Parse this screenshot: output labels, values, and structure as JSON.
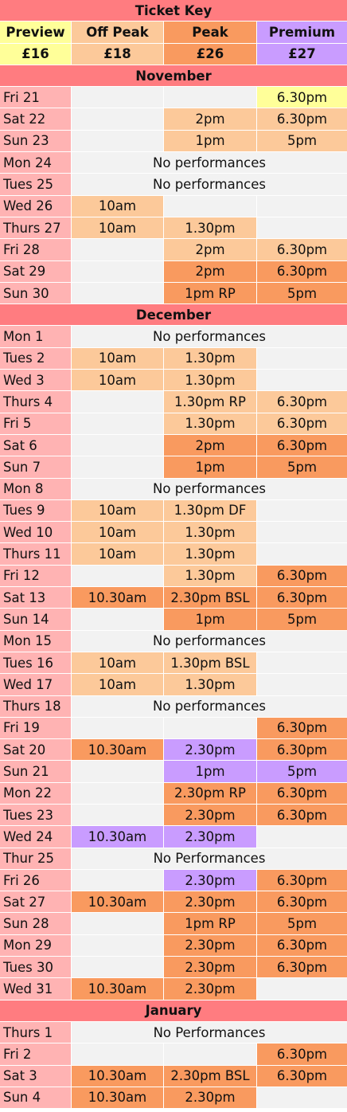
{
  "colors": {
    "head": "#ff7c80",
    "day": "#ffb3b3",
    "empty": "#f2f2f2",
    "preview": "#ffff99",
    "offpeak": "#fcc99a",
    "peak": "#f99a5f",
    "premium": "#c99cff"
  },
  "key": {
    "title": "Ticket Key",
    "tiers": [
      {
        "label": "Preview",
        "price": "£16",
        "color": "preview"
      },
      {
        "label": "Off Peak",
        "price": "£18",
        "color": "offpeak"
      },
      {
        "label": "Peak",
        "price": "£26",
        "color": "peak"
      },
      {
        "label": "Premium",
        "price": "£27",
        "color": "premium"
      }
    ]
  },
  "months": [
    {
      "name": "November",
      "rows": [
        {
          "day": "Fri 21",
          "cells": [
            {
              "t": "",
              "c": "empty"
            },
            {
              "t": "",
              "c": "empty"
            },
            {
              "t": "6.30pm",
              "c": "preview"
            }
          ]
        },
        {
          "day": "Sat 22",
          "cells": [
            {
              "t": "",
              "c": "empty"
            },
            {
              "t": "2pm",
              "c": "offpeak"
            },
            {
              "t": "6.30pm",
              "c": "offpeak"
            }
          ]
        },
        {
          "day": "Sun 23",
          "cells": [
            {
              "t": "",
              "c": "empty"
            },
            {
              "t": "1pm",
              "c": "offpeak"
            },
            {
              "t": "5pm",
              "c": "offpeak"
            }
          ]
        },
        {
          "day": "Mon 24",
          "note": "No performances"
        },
        {
          "day": "Tues 25",
          "note": "No performances"
        },
        {
          "day": "Wed 26",
          "cells": [
            {
              "t": "10am",
              "c": "offpeak"
            },
            {
              "t": "",
              "c": "empty"
            },
            {
              "t": "",
              "c": "empty"
            }
          ]
        },
        {
          "day": "Thurs 27",
          "cells": [
            {
              "t": "10am",
              "c": "offpeak"
            },
            {
              "t": "1.30pm",
              "c": "offpeak"
            },
            {
              "t": "",
              "c": "empty"
            }
          ]
        },
        {
          "day": "Fri 28",
          "cells": [
            {
              "t": "",
              "c": "empty"
            },
            {
              "t": "2pm",
              "c": "offpeak"
            },
            {
              "t": "6.30pm",
              "c": "offpeak"
            }
          ]
        },
        {
          "day": "Sat 29",
          "cells": [
            {
              "t": "",
              "c": "empty"
            },
            {
              "t": "2pm",
              "c": "peak"
            },
            {
              "t": "6.30pm",
              "c": "peak"
            }
          ]
        },
        {
          "day": "Sun 30",
          "cells": [
            {
              "t": "",
              "c": "empty"
            },
            {
              "t": "1pm RP",
              "c": "peak"
            },
            {
              "t": "5pm",
              "c": "peak"
            }
          ]
        }
      ]
    },
    {
      "name": "December",
      "rows": [
        {
          "day": "Mon 1",
          "note": "No performances"
        },
        {
          "day": "Tues 2",
          "cells": [
            {
              "t": "10am",
              "c": "offpeak"
            },
            {
              "t": "1.30pm",
              "c": "offpeak"
            },
            {
              "t": "",
              "c": "empty"
            }
          ]
        },
        {
          "day": "Wed 3",
          "cells": [
            {
              "t": "10am",
              "c": "offpeak"
            },
            {
              "t": "1.30pm",
              "c": "offpeak"
            },
            {
              "t": "",
              "c": "empty"
            }
          ]
        },
        {
          "day": "Thurs 4",
          "cells": [
            {
              "t": "",
              "c": "empty"
            },
            {
              "t": "1.30pm RP",
              "c": "offpeak"
            },
            {
              "t": "6.30pm",
              "c": "offpeak"
            }
          ]
        },
        {
          "day": "Fri 5",
          "cells": [
            {
              "t": "",
              "c": "empty"
            },
            {
              "t": "1.30pm",
              "c": "offpeak"
            },
            {
              "t": "6.30pm",
              "c": "offpeak"
            }
          ]
        },
        {
          "day": "Sat 6",
          "cells": [
            {
              "t": "",
              "c": "empty"
            },
            {
              "t": "2pm",
              "c": "peak"
            },
            {
              "t": "6.30pm",
              "c": "peak"
            }
          ]
        },
        {
          "day": "Sun 7",
          "cells": [
            {
              "t": "",
              "c": "empty"
            },
            {
              "t": "1pm",
              "c": "peak"
            },
            {
              "t": "5pm",
              "c": "peak"
            }
          ]
        },
        {
          "day": "Mon 8",
          "note": "No performances"
        },
        {
          "day": "Tues 9",
          "cells": [
            {
              "t": "10am",
              "c": "offpeak"
            },
            {
              "t": "1.30pm DF",
              "c": "offpeak"
            },
            {
              "t": "",
              "c": "empty"
            }
          ]
        },
        {
          "day": "Wed 10",
          "cells": [
            {
              "t": "10am",
              "c": "offpeak"
            },
            {
              "t": "1.30pm",
              "c": "offpeak"
            },
            {
              "t": "",
              "c": "empty"
            }
          ]
        },
        {
          "day": "Thurs 11",
          "cells": [
            {
              "t": "10am",
              "c": "offpeak"
            },
            {
              "t": "1.30pm",
              "c": "offpeak"
            },
            {
              "t": "",
              "c": "empty"
            }
          ]
        },
        {
          "day": "Fri 12",
          "cells": [
            {
              "t": "",
              "c": "empty"
            },
            {
              "t": "1.30pm",
              "c": "offpeak"
            },
            {
              "t": "6.30pm",
              "c": "peak"
            }
          ]
        },
        {
          "day": "Sat 13",
          "cells": [
            {
              "t": "10.30am",
              "c": "peak"
            },
            {
              "t": "2.30pm BSL",
              "c": "peak"
            },
            {
              "t": "6.30pm",
              "c": "peak"
            }
          ]
        },
        {
          "day": "Sun 14",
          "cells": [
            {
              "t": "",
              "c": "empty"
            },
            {
              "t": "1pm",
              "c": "peak"
            },
            {
              "t": "5pm",
              "c": "peak"
            }
          ]
        },
        {
          "day": "Mon 15",
          "note": "No performances"
        },
        {
          "day": "Tues 16",
          "cells": [
            {
              "t": "10am",
              "c": "offpeak"
            },
            {
              "t": "1.30pm BSL",
              "c": "offpeak"
            },
            {
              "t": "",
              "c": "empty"
            }
          ]
        },
        {
          "day": "Wed 17",
          "cells": [
            {
              "t": "10am",
              "c": "offpeak"
            },
            {
              "t": "1.30pm",
              "c": "offpeak"
            },
            {
              "t": "",
              "c": "empty"
            }
          ]
        },
        {
          "day": "Thurs 18",
          "note": "No performances"
        },
        {
          "day": "Fri 19",
          "cells": [
            {
              "t": "",
              "c": "empty"
            },
            {
              "t": "",
              "c": "empty"
            },
            {
              "t": "6.30pm",
              "c": "peak"
            }
          ]
        },
        {
          "day": "Sat 20",
          "cells": [
            {
              "t": "10.30am",
              "c": "peak"
            },
            {
              "t": "2.30pm",
              "c": "premium"
            },
            {
              "t": "6.30pm",
              "c": "peak"
            }
          ]
        },
        {
          "day": "Sun 21",
          "cells": [
            {
              "t": "",
              "c": "empty"
            },
            {
              "t": "1pm",
              "c": "premium"
            },
            {
              "t": "5pm",
              "c": "premium"
            }
          ]
        },
        {
          "day": "Mon 22",
          "cells": [
            {
              "t": "",
              "c": "empty"
            },
            {
              "t": "2.30pm RP",
              "c": "peak"
            },
            {
              "t": "6.30pm",
              "c": "peak"
            }
          ]
        },
        {
          "day": "Tues 23",
          "cells": [
            {
              "t": "",
              "c": "empty"
            },
            {
              "t": "2.30pm",
              "c": "peak"
            },
            {
              "t": "6.30pm",
              "c": "peak"
            }
          ]
        },
        {
          "day": "Wed 24",
          "cells": [
            {
              "t": "10.30am",
              "c": "premium"
            },
            {
              "t": "2.30pm",
              "c": "premium"
            },
            {
              "t": "",
              "c": "empty"
            }
          ]
        },
        {
          "day": "Thur 25",
          "note": "No Performances"
        },
        {
          "day": "Fri 26",
          "cells": [
            {
              "t": "",
              "c": "empty"
            },
            {
              "t": "2.30pm",
              "c": "premium"
            },
            {
              "t": "6.30pm",
              "c": "peak"
            }
          ]
        },
        {
          "day": "Sat 27",
          "cells": [
            {
              "t": "10.30am",
              "c": "peak"
            },
            {
              "t": "2.30pm",
              "c": "peak"
            },
            {
              "t": "6.30pm",
              "c": "peak"
            }
          ]
        },
        {
          "day": "Sun 28",
          "cells": [
            {
              "t": "",
              "c": "empty"
            },
            {
              "t": "1pm RP",
              "c": "peak"
            },
            {
              "t": "5pm",
              "c": "peak"
            }
          ]
        },
        {
          "day": "Mon 29",
          "cells": [
            {
              "t": "",
              "c": "empty"
            },
            {
              "t": "2.30pm",
              "c": "peak"
            },
            {
              "t": "6.30pm",
              "c": "peak"
            }
          ]
        },
        {
          "day": "Tues 30",
          "cells": [
            {
              "t": "",
              "c": "empty"
            },
            {
              "t": "2.30pm",
              "c": "peak"
            },
            {
              "t": "6.30pm",
              "c": "peak"
            }
          ]
        },
        {
          "day": "Wed 31",
          "cells": [
            {
              "t": "10.30am",
              "c": "peak"
            },
            {
              "t": "2.30pm",
              "c": "peak"
            },
            {
              "t": "",
              "c": "empty"
            }
          ]
        }
      ]
    },
    {
      "name": "January",
      "rows": [
        {
          "day": "Thurs 1",
          "note": "No Performances"
        },
        {
          "day": "Fri 2",
          "cells": [
            {
              "t": "",
              "c": "empty"
            },
            {
              "t": "",
              "c": "empty"
            },
            {
              "t": "6.30pm",
              "c": "peak"
            }
          ]
        },
        {
          "day": "Sat 3",
          "cells": [
            {
              "t": "10.30am",
              "c": "peak"
            },
            {
              "t": "2.30pm BSL",
              "c": "peak"
            },
            {
              "t": "6.30pm",
              "c": "peak"
            }
          ]
        },
        {
          "day": "Sun 4",
          "cells": [
            {
              "t": "10.30am",
              "c": "peak"
            },
            {
              "t": "2.30pm",
              "c": "peak"
            },
            {
              "t": "",
              "c": "empty"
            }
          ]
        }
      ]
    }
  ]
}
